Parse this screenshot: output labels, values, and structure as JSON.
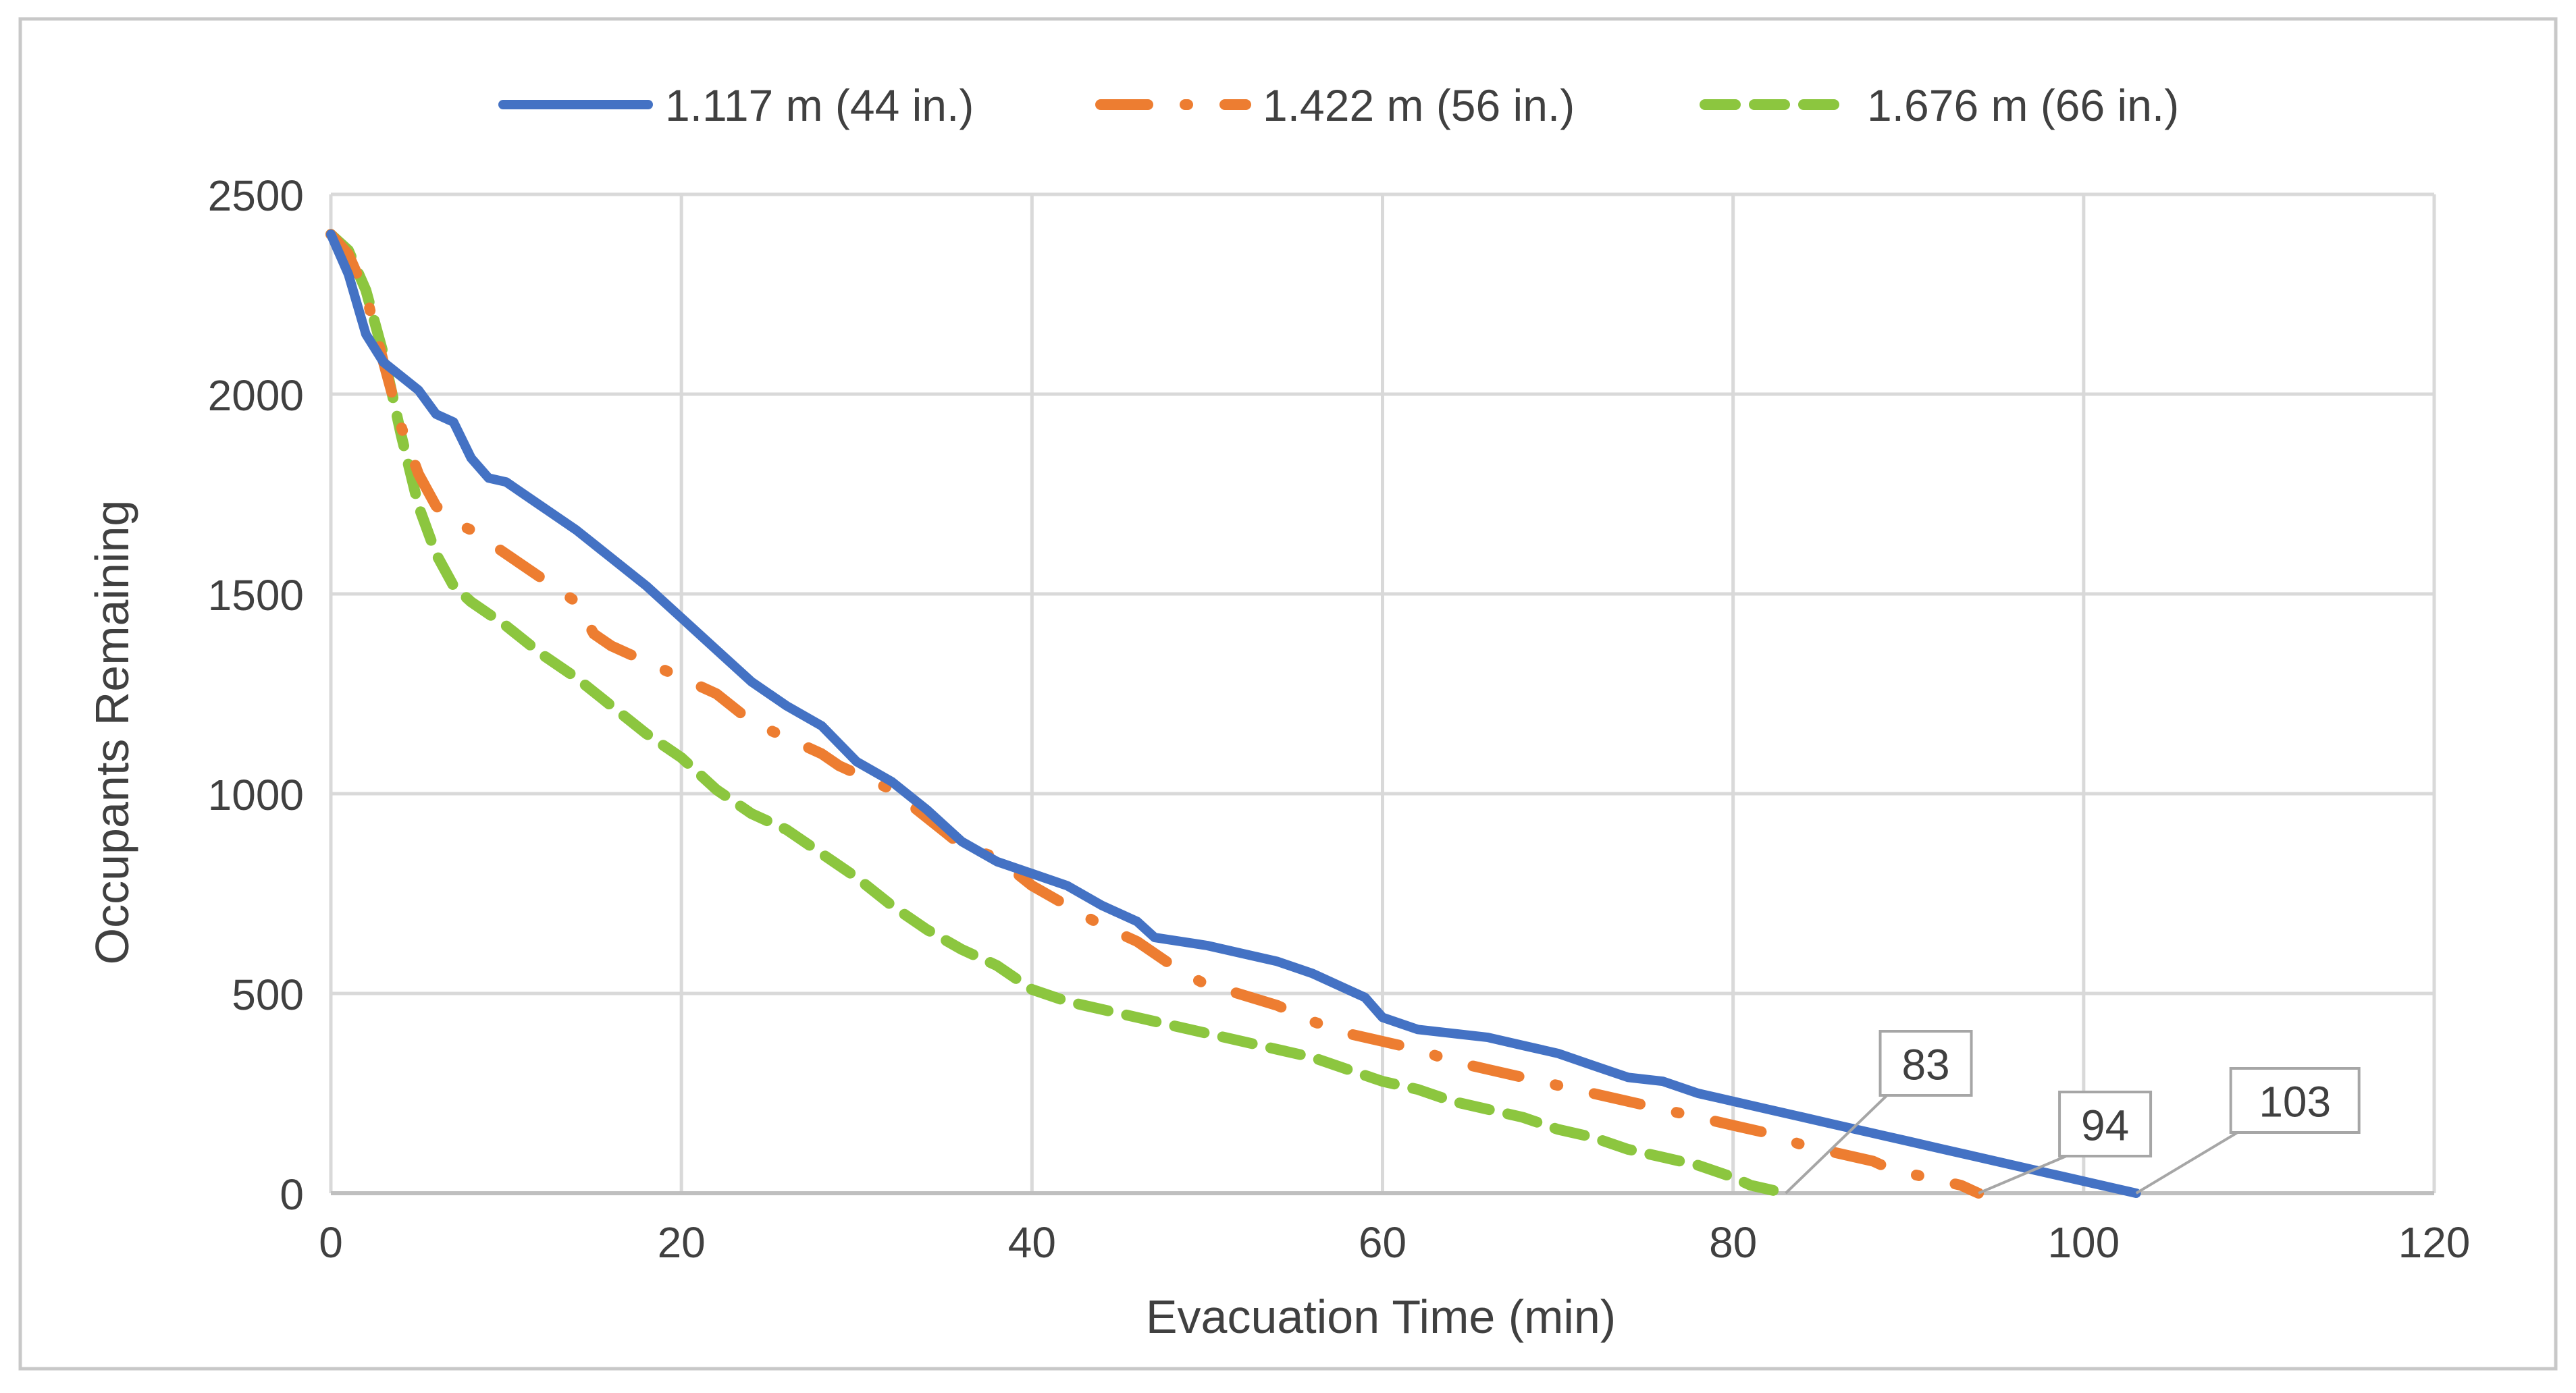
{
  "chart_data": {
    "type": "line",
    "title": "",
    "xlabel": "Evacuation Time (min)",
    "ylabel": "Occupants Remaining",
    "xlim": [
      0,
      120
    ],
    "ylim": [
      0,
      2500
    ],
    "xticks": [
      0,
      20,
      40,
      60,
      80,
      100,
      120
    ],
    "yticks": [
      0,
      500,
      1000,
      1500,
      2000,
      2500
    ],
    "grid": true,
    "legend_position": "top",
    "series": [
      {
        "name": "1.117 m (44 in.)",
        "color": "#4472C4",
        "style": "solid",
        "points": [
          [
            0,
            2400
          ],
          [
            1,
            2300
          ],
          [
            2,
            2150
          ],
          [
            3,
            2080
          ],
          [
            5,
            2010
          ],
          [
            6,
            1950
          ],
          [
            7,
            1930
          ],
          [
            8,
            1840
          ],
          [
            9,
            1790
          ],
          [
            10,
            1780
          ],
          [
            12,
            1720
          ],
          [
            14,
            1660
          ],
          [
            16,
            1590
          ],
          [
            18,
            1520
          ],
          [
            20,
            1440
          ],
          [
            22,
            1360
          ],
          [
            24,
            1280
          ],
          [
            26,
            1220
          ],
          [
            28,
            1170
          ],
          [
            30,
            1080
          ],
          [
            32,
            1030
          ],
          [
            34,
            960
          ],
          [
            36,
            880
          ],
          [
            38,
            830
          ],
          [
            40,
            800
          ],
          [
            42,
            770
          ],
          [
            44,
            720
          ],
          [
            46,
            680
          ],
          [
            47,
            640
          ],
          [
            50,
            620
          ],
          [
            52,
            600
          ],
          [
            54,
            580
          ],
          [
            56,
            550
          ],
          [
            58,
            510
          ],
          [
            59,
            490
          ],
          [
            60,
            440
          ],
          [
            62,
            410
          ],
          [
            64,
            400
          ],
          [
            66,
            390
          ],
          [
            68,
            370
          ],
          [
            70,
            350
          ],
          [
            72,
            320
          ],
          [
            74,
            290
          ],
          [
            76,
            280
          ],
          [
            78,
            250
          ],
          [
            80,
            230
          ],
          [
            82,
            210
          ],
          [
            84,
            190
          ],
          [
            86,
            170
          ],
          [
            88,
            150
          ],
          [
            90,
            130
          ],
          [
            92,
            110
          ],
          [
            94,
            90
          ],
          [
            96,
            70
          ],
          [
            98,
            50
          ],
          [
            100,
            30
          ],
          [
            102,
            10
          ],
          [
            103,
            0
          ]
        ],
        "end_label": "103"
      },
      {
        "name": "1.422 m (56 in.)",
        "color": "#ED7D31",
        "style": "long-dash-dot",
        "points": [
          [
            0,
            2400
          ],
          [
            1,
            2350
          ],
          [
            2,
            2250
          ],
          [
            3,
            2080
          ],
          [
            4,
            1920
          ],
          [
            5,
            1800
          ],
          [
            6,
            1720
          ],
          [
            7,
            1680
          ],
          [
            8,
            1660
          ],
          [
            10,
            1600
          ],
          [
            12,
            1540
          ],
          [
            14,
            1480
          ],
          [
            15,
            1400
          ],
          [
            16,
            1370
          ],
          [
            18,
            1330
          ],
          [
            20,
            1290
          ],
          [
            22,
            1250
          ],
          [
            24,
            1180
          ],
          [
            26,
            1140
          ],
          [
            28,
            1100
          ],
          [
            29,
            1070
          ],
          [
            32,
            1010
          ],
          [
            34,
            940
          ],
          [
            36,
            870
          ],
          [
            38,
            840
          ],
          [
            40,
            770
          ],
          [
            42,
            720
          ],
          [
            44,
            670
          ],
          [
            46,
            630
          ],
          [
            48,
            570
          ],
          [
            50,
            520
          ],
          [
            51,
            510
          ],
          [
            54,
            470
          ],
          [
            56,
            430
          ],
          [
            58,
            400
          ],
          [
            60,
            380
          ],
          [
            62,
            360
          ],
          [
            64,
            330
          ],
          [
            66,
            310
          ],
          [
            68,
            290
          ],
          [
            70,
            270
          ],
          [
            72,
            250
          ],
          [
            74,
            230
          ],
          [
            76,
            210
          ],
          [
            78,
            190
          ],
          [
            80,
            170
          ],
          [
            82,
            150
          ],
          [
            84,
            120
          ],
          [
            86,
            100
          ],
          [
            88,
            80
          ],
          [
            89,
            60
          ],
          [
            91,
            40
          ],
          [
            93,
            20
          ],
          [
            94,
            0
          ]
        ],
        "end_label": "94"
      },
      {
        "name": "1.676 m (66 in.)",
        "color": "#8CC63F",
        "style": "dashed",
        "points": [
          [
            0,
            2400
          ],
          [
            1,
            2360
          ],
          [
            2,
            2260
          ],
          [
            3,
            2100
          ],
          [
            4,
            1900
          ],
          [
            5,
            1720
          ],
          [
            6,
            1600
          ],
          [
            7,
            1520
          ],
          [
            8,
            1480
          ],
          [
            10,
            1420
          ],
          [
            12,
            1350
          ],
          [
            14,
            1290
          ],
          [
            16,
            1220
          ],
          [
            18,
            1150
          ],
          [
            20,
            1090
          ],
          [
            22,
            1010
          ],
          [
            24,
            950
          ],
          [
            26,
            910
          ],
          [
            28,
            850
          ],
          [
            30,
            790
          ],
          [
            32,
            720
          ],
          [
            34,
            660
          ],
          [
            36,
            610
          ],
          [
            38,
            570
          ],
          [
            40,
            510
          ],
          [
            42,
            480
          ],
          [
            44,
            460
          ],
          [
            46,
            440
          ],
          [
            48,
            420
          ],
          [
            50,
            400
          ],
          [
            52,
            380
          ],
          [
            54,
            360
          ],
          [
            56,
            340
          ],
          [
            58,
            310
          ],
          [
            60,
            280
          ],
          [
            62,
            260
          ],
          [
            64,
            230
          ],
          [
            66,
            210
          ],
          [
            68,
            190
          ],
          [
            70,
            160
          ],
          [
            72,
            140
          ],
          [
            74,
            110
          ],
          [
            76,
            90
          ],
          [
            78,
            70
          ],
          [
            80,
            40
          ],
          [
            81,
            20
          ],
          [
            82,
            10
          ],
          [
            83,
            0
          ]
        ],
        "end_label": "83"
      }
    ]
  }
}
